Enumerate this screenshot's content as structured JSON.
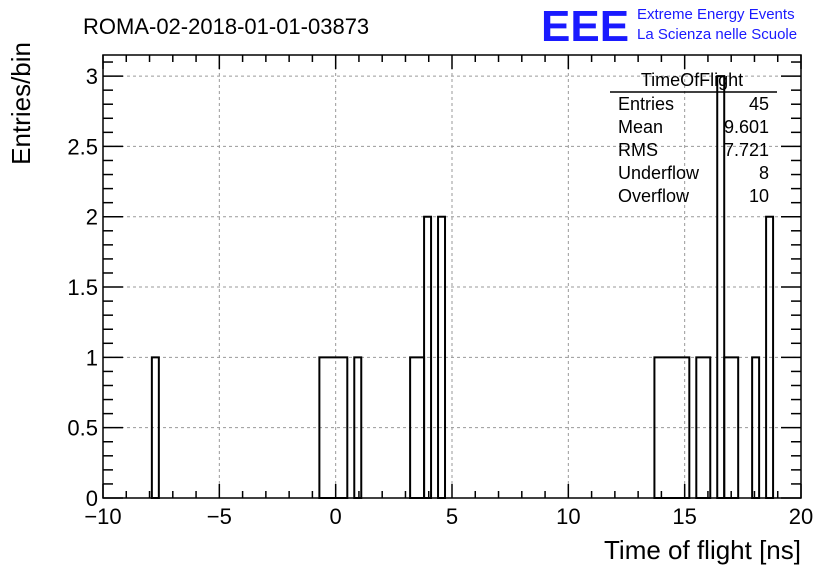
{
  "header": {
    "run_title": "ROMA-02-2018-01-01-03873",
    "logo_text": "EEE",
    "logo_line1": "Extreme Energy Events",
    "logo_line2": "La Scienza nelle Scuole",
    "logo_color": "#1a1aff"
  },
  "stats": {
    "title": "TimeOfFlight",
    "rows": [
      {
        "label": "Entries",
        "value": "45"
      },
      {
        "label": "Mean",
        "value": "9.601"
      },
      {
        "label": "RMS",
        "value": "7.721"
      },
      {
        "label": "Underflow",
        "value": "8"
      },
      {
        "label": "Overflow",
        "value": "10"
      }
    ]
  },
  "chart_data": {
    "type": "bar",
    "style": "histogram-step",
    "xlabel": "Time of flight [ns]",
    "ylabel": "Entries/bin",
    "xlim": [
      -10,
      20
    ],
    "ylim": [
      0,
      3.15
    ],
    "grid": true,
    "bin_width": 0.3,
    "x_ticks": [
      -10,
      -5,
      0,
      5,
      10,
      15,
      20
    ],
    "x_tick_labels": [
      "−10",
      "−5",
      "0",
      "5",
      "10",
      "15",
      "20"
    ],
    "y_ticks": [
      0,
      0.5,
      1,
      1.5,
      2,
      2.5,
      3
    ],
    "y_tick_labels": [
      "0",
      "0.5",
      "1",
      "1.5",
      "2",
      "2.5",
      "3"
    ],
    "bins": [
      {
        "x0": -7.9,
        "x1": -7.6,
        "y": 1
      },
      {
        "x0": -0.7,
        "x1": 0.5,
        "y": 1
      },
      {
        "x0": 0.8,
        "x1": 1.1,
        "y": 1
      },
      {
        "x0": 3.2,
        "x1": 3.8,
        "y": 1
      },
      {
        "x0": 3.8,
        "x1": 4.1,
        "y": 2
      },
      {
        "x0": 4.4,
        "x1": 4.7,
        "y": 2
      },
      {
        "x0": 13.7,
        "x1": 15.2,
        "y": 1
      },
      {
        "x0": 15.5,
        "x1": 16.1,
        "y": 1
      },
      {
        "x0": 16.4,
        "x1": 16.7,
        "y": 3
      },
      {
        "x0": 16.7,
        "x1": 17.3,
        "y": 1
      },
      {
        "x0": 17.9,
        "x1": 18.2,
        "y": 1
      },
      {
        "x0": 18.5,
        "x1": 18.8,
        "y": 2
      }
    ]
  }
}
